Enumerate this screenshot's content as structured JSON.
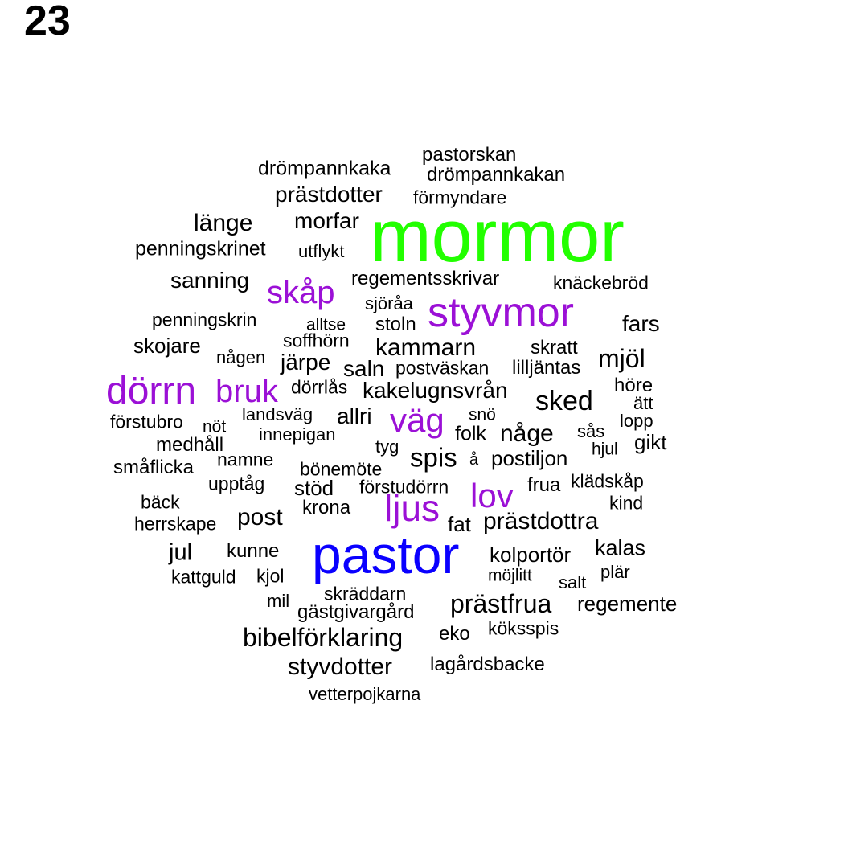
{
  "page_number": "23",
  "colors": {
    "default": "#000000",
    "green": "#22ff00",
    "purple": "#9b10d6",
    "blue": "#0a00ff"
  },
  "words": [
    {
      "text": "mormor",
      "color": "green"
    },
    {
      "text": "pastor",
      "color": "blue"
    },
    {
      "text": "styvmor",
      "color": "purple"
    },
    {
      "text": "dörrn",
      "color": "purple"
    },
    {
      "text": "skåp",
      "color": "purple"
    },
    {
      "text": "bruk",
      "color": "purple"
    },
    {
      "text": "väg",
      "color": "purple"
    },
    {
      "text": "lov",
      "color": "purple"
    },
    {
      "text": "ljus",
      "color": "purple"
    },
    {
      "text": "pastorskan",
      "color": "default"
    },
    {
      "text": "drömpannkaka",
      "color": "default"
    },
    {
      "text": "drömpannkakan",
      "color": "default"
    },
    {
      "text": "prästdotter",
      "color": "default"
    },
    {
      "text": "förmyndare",
      "color": "default"
    },
    {
      "text": "länge",
      "color": "default"
    },
    {
      "text": "morfar",
      "color": "default"
    },
    {
      "text": "penningskrinet",
      "color": "default"
    },
    {
      "text": "utflykt",
      "color": "default"
    },
    {
      "text": "sanning",
      "color": "default"
    },
    {
      "text": "regementsskrivar",
      "color": "default"
    },
    {
      "text": "knäckebröd",
      "color": "default"
    },
    {
      "text": "sjöråa",
      "color": "default"
    },
    {
      "text": "penningskrin",
      "color": "default"
    },
    {
      "text": "alltse",
      "color": "default"
    },
    {
      "text": "stoln",
      "color": "default"
    },
    {
      "text": "fars",
      "color": "default"
    },
    {
      "text": "skojare",
      "color": "default"
    },
    {
      "text": "soffhörn",
      "color": "default"
    },
    {
      "text": "kammarn",
      "color": "default"
    },
    {
      "text": "skratt",
      "color": "default"
    },
    {
      "text": "mjöl",
      "color": "default"
    },
    {
      "text": "någen",
      "color": "default"
    },
    {
      "text": "järpe",
      "color": "default"
    },
    {
      "text": "saln",
      "color": "default"
    },
    {
      "text": "postväskan",
      "color": "default"
    },
    {
      "text": "lilljäntas",
      "color": "default"
    },
    {
      "text": "höre",
      "color": "default"
    },
    {
      "text": "dörrlås",
      "color": "default"
    },
    {
      "text": "kakelugnsvrån",
      "color": "default"
    },
    {
      "text": "sked",
      "color": "default"
    },
    {
      "text": "ätt",
      "color": "default"
    },
    {
      "text": "förstubro",
      "color": "default"
    },
    {
      "text": "nöt",
      "color": "default"
    },
    {
      "text": "landsväg",
      "color": "default"
    },
    {
      "text": "allri",
      "color": "default"
    },
    {
      "text": "snö",
      "color": "default"
    },
    {
      "text": "lopp",
      "color": "default"
    },
    {
      "text": "innepigan",
      "color": "default"
    },
    {
      "text": "folk",
      "color": "default"
    },
    {
      "text": "någe",
      "color": "default"
    },
    {
      "text": "sås",
      "color": "default"
    },
    {
      "text": "medhåll",
      "color": "default"
    },
    {
      "text": "tyg",
      "color": "default"
    },
    {
      "text": "hjul",
      "color": "default"
    },
    {
      "text": "gikt",
      "color": "default"
    },
    {
      "text": "småflicka",
      "color": "default"
    },
    {
      "text": "namne",
      "color": "default"
    },
    {
      "text": "spis",
      "color": "default"
    },
    {
      "text": "å",
      "color": "default"
    },
    {
      "text": "postiljon",
      "color": "default"
    },
    {
      "text": "bönemöte",
      "color": "default"
    },
    {
      "text": "upptåg",
      "color": "default"
    },
    {
      "text": "stöd",
      "color": "default"
    },
    {
      "text": "förstudörrn",
      "color": "default"
    },
    {
      "text": "frua",
      "color": "default"
    },
    {
      "text": "klädskåp",
      "color": "default"
    },
    {
      "text": "bäck",
      "color": "default"
    },
    {
      "text": "krona",
      "color": "default"
    },
    {
      "text": "kind",
      "color": "default"
    },
    {
      "text": "herrskape",
      "color": "default"
    },
    {
      "text": "post",
      "color": "default"
    },
    {
      "text": "fat",
      "color": "default"
    },
    {
      "text": "prästdottra",
      "color": "default"
    },
    {
      "text": "jul",
      "color": "default"
    },
    {
      "text": "kunne",
      "color": "default"
    },
    {
      "text": "kolportör",
      "color": "default"
    },
    {
      "text": "kalas",
      "color": "default"
    },
    {
      "text": "kattguld",
      "color": "default"
    },
    {
      "text": "kjol",
      "color": "default"
    },
    {
      "text": "möjlitt",
      "color": "default"
    },
    {
      "text": "plär",
      "color": "default"
    },
    {
      "text": "salt",
      "color": "default"
    },
    {
      "text": "skräddarn",
      "color": "default"
    },
    {
      "text": "mil",
      "color": "default"
    },
    {
      "text": "prästfrua",
      "color": "default"
    },
    {
      "text": "regemente",
      "color": "default"
    },
    {
      "text": "gästgivargård",
      "color": "default"
    },
    {
      "text": "köksspis",
      "color": "default"
    },
    {
      "text": "bibelförklaring",
      "color": "default"
    },
    {
      "text": "eko",
      "color": "default"
    },
    {
      "text": "lagårdsbacke",
      "color": "default"
    },
    {
      "text": "styvdotter",
      "color": "default"
    },
    {
      "text": "vetterpojkarna",
      "color": "default"
    }
  ]
}
